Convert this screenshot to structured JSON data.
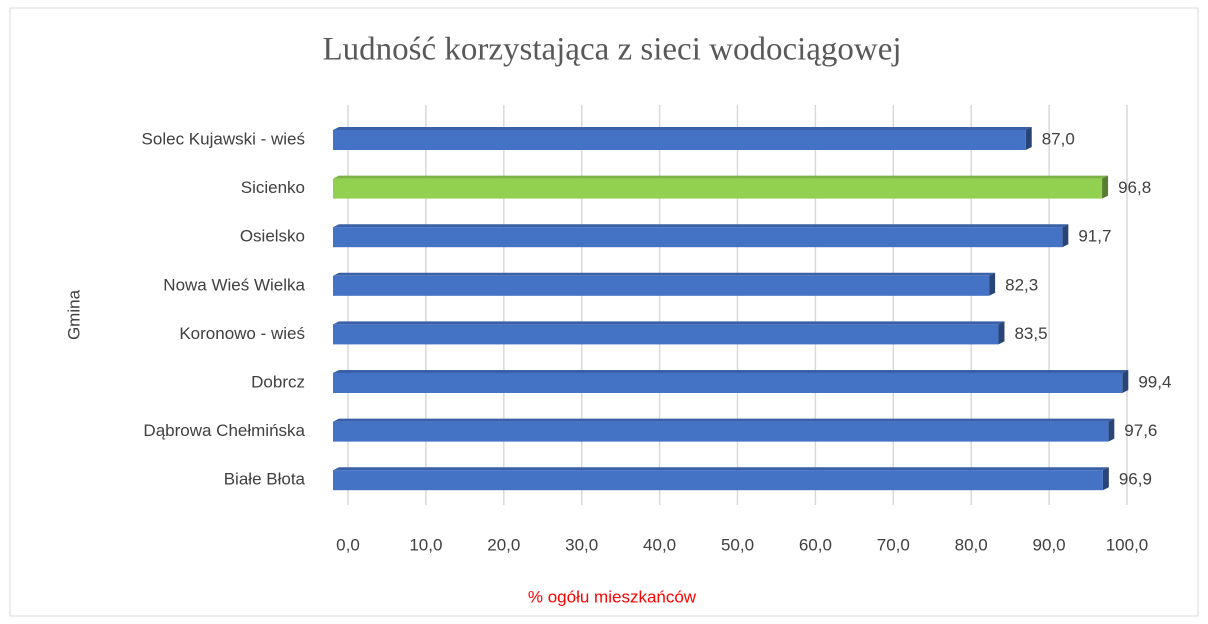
{
  "chart_data": {
    "type": "bar",
    "orientation": "horizontal",
    "title": "Ludność korzystająca z sieci wodociągowej",
    "x_label": "% ogółu mieszkańców",
    "y_label": "Gmina",
    "categories": [
      "Solec Kujawski - wieś",
      "Sicienko",
      "Osielsko",
      "Nowa Wieś Wielka",
      "Koronowo - wieś",
      "Dobrcz",
      "Dąbrowa Chełmińska",
      "Białe Błota"
    ],
    "values": [
      87.0,
      96.8,
      91.7,
      82.3,
      83.5,
      99.4,
      97.6,
      96.9
    ],
    "value_labels": [
      "87,0",
      "96,8",
      "91,7",
      "82,3",
      "83,5",
      "99,4",
      "97,6",
      "96,9"
    ],
    "colors": [
      "#4472c4",
      "#92d050",
      "#4472c4",
      "#4472c4",
      "#4472c4",
      "#4472c4",
      "#4472c4",
      "#4472c4"
    ],
    "xlim": [
      0,
      100
    ],
    "xticks": [
      {
        "value": 0,
        "label": "0,0"
      },
      {
        "value": 10,
        "label": "10,0"
      },
      {
        "value": 20,
        "label": "20,0"
      },
      {
        "value": 30,
        "label": "30,0"
      },
      {
        "value": 40,
        "label": "40,0"
      },
      {
        "value": 50,
        "label": "50,0"
      },
      {
        "value": 60,
        "label": "60,0"
      },
      {
        "value": 70,
        "label": "70,0"
      },
      {
        "value": 80,
        "label": "80,0"
      },
      {
        "value": 90,
        "label": "90,0"
      },
      {
        "value": 100,
        "label": "100,0"
      }
    ],
    "grid": true
  }
}
